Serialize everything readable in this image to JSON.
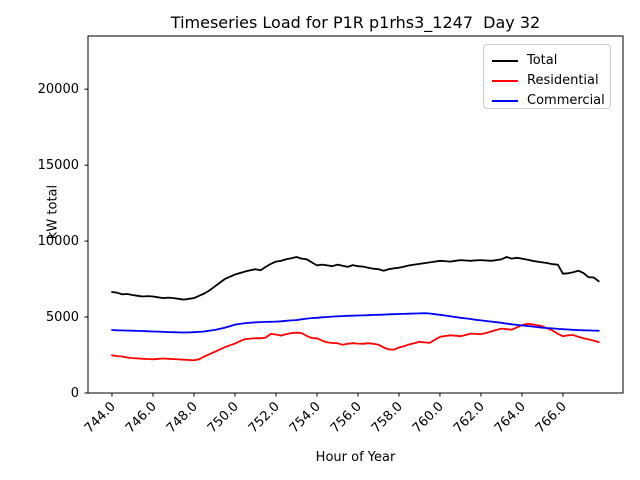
{
  "chart_data": {
    "type": "line",
    "title": "Timeseries Load for P1R p1rhs3_1247  Day 32",
    "xlabel": "Hour of Year",
    "ylabel": "kW total",
    "xlim": [
      742.83,
      768.93
    ],
    "ylim": [
      0,
      23500
    ],
    "grid": false,
    "legend_position": "upper right",
    "xticks": [
      744,
      746,
      748,
      750,
      752,
      754,
      756,
      758,
      760,
      762,
      764,
      766
    ],
    "xtick_labels": [
      "744.0",
      "746.0",
      "748.0",
      "750.0",
      "752.0",
      "754.0",
      "756.0",
      "758.0",
      "760.0",
      "762.0",
      "764.0",
      "766.0"
    ],
    "yticks": [
      0,
      5000,
      10000,
      15000,
      20000
    ],
    "ytick_labels": [
      "0",
      "5000",
      "10000",
      "15000",
      "20000"
    ],
    "x_start": 744.0,
    "x_step": 0.25,
    "series": [
      {
        "name": "Total",
        "color": "#000000",
        "values": [
          6650,
          6600,
          6500,
          6520,
          6450,
          6400,
          6350,
          6380,
          6350,
          6300,
          6250,
          6280,
          6250,
          6200,
          6150,
          6200,
          6250,
          6400,
          6550,
          6750,
          7000,
          7250,
          7500,
          7650,
          7800,
          7900,
          8000,
          8080,
          8150,
          8080,
          8300,
          8500,
          8650,
          8700,
          8800,
          8870,
          8950,
          8850,
          8800,
          8600,
          8400,
          8450,
          8400,
          8350,
          8450,
          8380,
          8300,
          8420,
          8350,
          8320,
          8250,
          8180,
          8150,
          8050,
          8150,
          8200,
          8250,
          8320,
          8400,
          8450,
          8500,
          8550,
          8600,
          8650,
          8700,
          8680,
          8650,
          8700,
          8750,
          8720,
          8700,
          8730,
          8750,
          8720,
          8700,
          8750,
          8800,
          8950,
          8850,
          8900,
          8850,
          8780,
          8700,
          8650,
          8600,
          8550,
          8480,
          8450,
          7850,
          7880,
          7950,
          8050,
          7900,
          7620,
          7600,
          7350
        ]
      },
      {
        "name": "Residential",
        "color": "#ff0000",
        "values": [
          2480,
          2430,
          2400,
          2340,
          2300,
          2280,
          2250,
          2240,
          2220,
          2250,
          2270,
          2250,
          2230,
          2210,
          2190,
          2170,
          2150,
          2220,
          2400,
          2550,
          2700,
          2860,
          3010,
          3140,
          3250,
          3420,
          3550,
          3580,
          3610,
          3600,
          3650,
          3890,
          3850,
          3780,
          3880,
          3940,
          3970,
          3950,
          3760,
          3620,
          3600,
          3450,
          3330,
          3290,
          3280,
          3170,
          3240,
          3280,
          3250,
          3240,
          3280,
          3240,
          3180,
          3000,
          2870,
          2850,
          3000,
          3080,
          3200,
          3280,
          3370,
          3330,
          3300,
          3500,
          3690,
          3750,
          3800,
          3770,
          3740,
          3820,
          3910,
          3890,
          3870,
          3950,
          4050,
          4150,
          4240,
          4200,
          4170,
          4320,
          4460,
          4550,
          4520,
          4460,
          4400,
          4250,
          4110,
          3900,
          3740,
          3800,
          3820,
          3700,
          3610,
          3530,
          3450,
          3350
        ]
      },
      {
        "name": "Commercial",
        "color": "#0000ff",
        "values": [
          4150,
          4130,
          4120,
          4110,
          4100,
          4090,
          4080,
          4060,
          4050,
          4040,
          4030,
          4010,
          4000,
          3990,
          3980,
          3990,
          4000,
          4020,
          4050,
          4100,
          4150,
          4220,
          4300,
          4400,
          4500,
          4550,
          4600,
          4630,
          4650,
          4670,
          4680,
          4690,
          4700,
          4720,
          4750,
          4780,
          4800,
          4850,
          4900,
          4930,
          4950,
          4980,
          5000,
          5030,
          5050,
          5060,
          5080,
          5090,
          5100,
          5110,
          5120,
          5140,
          5150,
          5160,
          5180,
          5190,
          5200,
          5210,
          5220,
          5230,
          5240,
          5250,
          5230,
          5190,
          5150,
          5100,
          5050,
          5000,
          4950,
          4910,
          4870,
          4820,
          4780,
          4740,
          4700,
          4660,
          4620,
          4570,
          4520,
          4480,
          4450,
          4410,
          4380,
          4340,
          4300,
          4270,
          4250,
          4220,
          4200,
          4180,
          4160,
          4140,
          4130,
          4120,
          4110,
          4100
        ]
      }
    ]
  }
}
